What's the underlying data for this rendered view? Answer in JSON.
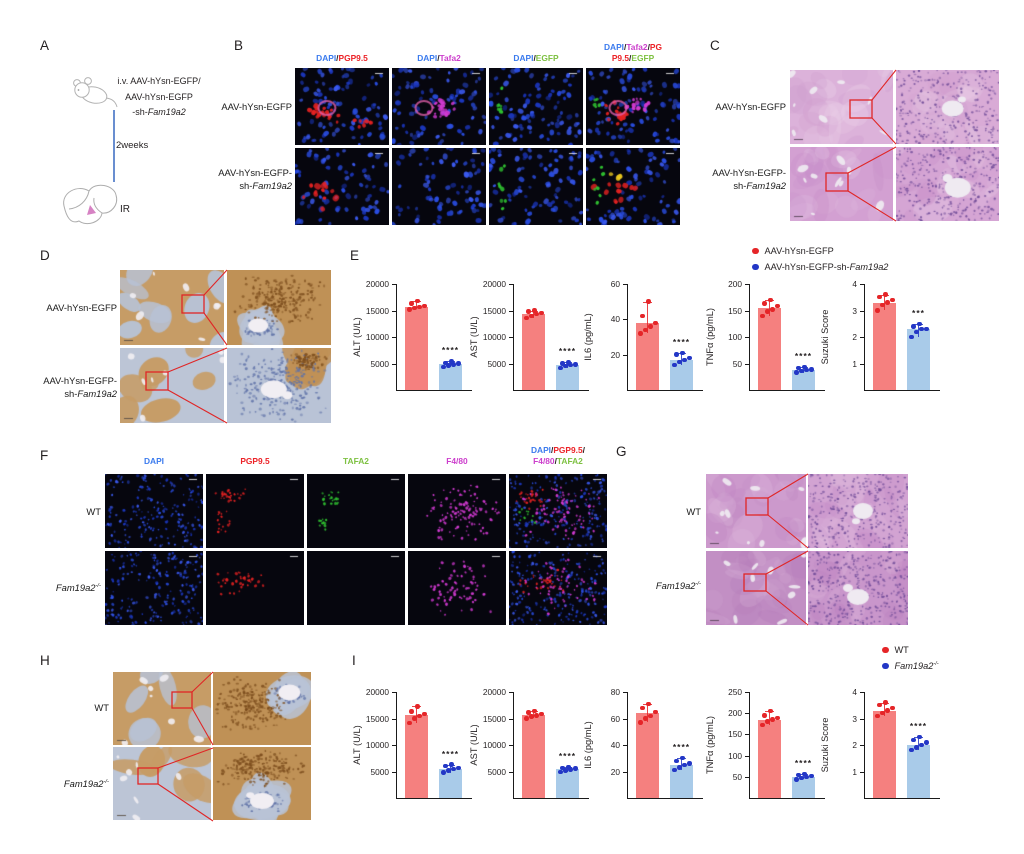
{
  "colors": {
    "text": "#231f20",
    "dapi_blue": "#3b7bee",
    "marker_red": "#ec2227",
    "marker_magenta": "#cc3ecc",
    "marker_green": "#7ec142",
    "bar_red": "#f5807f",
    "bar_blue": "#a9cbe9",
    "dot_red": "#e52528",
    "dot_blue": "#2337c6",
    "annotation_red": "#e02626",
    "timeline_blue": "#4472c4"
  },
  "panel_a": {
    "label": "A",
    "treatment": [
      [
        {
          "t": "i.v. AAV-hYsn-EGFP/"
        }
      ],
      [
        {
          "t": "AAV-hYsn-EGFP"
        }
      ],
      [
        {
          "t": "-sh-"
        },
        {
          "t": "Fam19a2",
          "i": true
        }
      ]
    ],
    "duration": "2weeks",
    "procedure": "IR"
  },
  "panel_b": {
    "label": "B",
    "col_headers": [
      [
        [
          {
            "t": "DAPI",
            "c": "dapi_blue"
          },
          {
            "t": "/"
          },
          {
            "t": "PGP9.5",
            "c": "marker_red"
          }
        ]
      ],
      [
        [
          {
            "t": "DAPI",
            "c": "dapi_blue"
          },
          {
            "t": "/"
          },
          {
            "t": "Tafa2",
            "c": "marker_magenta"
          }
        ]
      ],
      [
        [
          {
            "t": "DAPI",
            "c": "dapi_blue"
          },
          {
            "t": "/"
          },
          {
            "t": "EGFP",
            "c": "marker_green"
          }
        ]
      ],
      [
        [
          {
            "t": "DAPI",
            "c": "dapi_blue"
          },
          {
            "t": "/"
          },
          {
            "t": "Tafa2",
            "c": "marker_magenta"
          },
          {
            "t": "/"
          },
          {
            "t": "PG",
            "c": "marker_red"
          }
        ],
        [
          {
            "t": "P9.5",
            "c": "marker_red"
          },
          {
            "t": "/"
          },
          {
            "t": "EGFP",
            "c": "marker_green"
          }
        ]
      ]
    ],
    "row_labels": [
      [
        [
          {
            "t": "AAV-hYsn-EGFP"
          }
        ]
      ],
      [
        [
          {
            "t": "AAV-hYsn-EGFP-"
          }
        ],
        [
          {
            "t": "sh-"
          },
          {
            "t": "Fam19a2",
            "i": true
          }
        ]
      ]
    ]
  },
  "panel_c": {
    "label": "C",
    "row_labels": [
      [
        [
          {
            "t": "AAV-hYsn-EGFP"
          }
        ]
      ],
      [
        [
          {
            "t": "AAV-hYsn-EGFP-"
          }
        ],
        [
          {
            "t": "sh-"
          },
          {
            "t": "Fam19a2",
            "i": true
          }
        ]
      ]
    ]
  },
  "panel_d": {
    "label": "D",
    "row_labels": [
      [
        [
          {
            "t": "AAV-hYsn-EGFP"
          }
        ]
      ],
      [
        [
          {
            "t": "AAV-hYsn-EGFP-"
          }
        ],
        [
          {
            "t": "sh-"
          },
          {
            "t": "Fam19a2",
            "i": true
          }
        ]
      ]
    ]
  },
  "panel_e": {
    "label": "E",
    "legend": [
      {
        "c": "dot_red",
        "segs": [
          {
            "t": "AAV-hYsn-EGFP"
          }
        ]
      },
      {
        "c": "dot_blue",
        "segs": [
          {
            "t": "AAV-hYsn-EGFP-sh-"
          },
          {
            "t": "Fam19a2",
            "i": true
          }
        ]
      }
    ]
  },
  "panel_f": {
    "label": "F",
    "col_headers": [
      [
        [
          {
            "t": "DAPI",
            "c": "dapi_blue"
          }
        ]
      ],
      [
        [
          {
            "t": "PGP9.5",
            "c": "marker_red"
          }
        ]
      ],
      [
        [
          {
            "t": "TAFA2",
            "c": "marker_green"
          }
        ]
      ],
      [
        [
          {
            "t": "F4/80",
            "c": "marker_magenta"
          }
        ]
      ],
      [
        [
          {
            "t": "DAPI",
            "c": "dapi_blue"
          },
          {
            "t": "/"
          },
          {
            "t": "PGP9.5",
            "c": "marker_red"
          },
          {
            "t": "/"
          }
        ],
        [
          {
            "t": "F4/80",
            "c": "marker_magenta"
          },
          {
            "t": "/"
          },
          {
            "t": "TAFA2",
            "c": "marker_green"
          }
        ]
      ]
    ],
    "row_labels": [
      [
        [
          {
            "t": "WT"
          }
        ]
      ],
      [
        [
          {
            "t": "Fam19a2",
            "i": true
          },
          {
            "t": "-/-",
            "i": true,
            "sup": true
          }
        ]
      ]
    ]
  },
  "panel_g": {
    "label": "G",
    "row_labels": [
      [
        [
          {
            "t": "WT"
          }
        ]
      ],
      [
        [
          {
            "t": "Fam19a2",
            "i": true
          },
          {
            "t": "-/-",
            "i": true,
            "sup": true
          }
        ]
      ]
    ]
  },
  "panel_h": {
    "label": "H",
    "row_labels": [
      [
        [
          {
            "t": "WT"
          }
        ]
      ],
      [
        [
          {
            "t": "Fam19a2",
            "i": true
          },
          {
            "t": "-/-",
            "i": true,
            "sup": true
          }
        ]
      ]
    ]
  },
  "panel_i": {
    "label": "I",
    "legend": [
      {
        "c": "dot_red",
        "segs": [
          {
            "t": "WT"
          }
        ]
      },
      {
        "c": "dot_blue",
        "segs": [
          {
            "t": "Fam19a2",
            "i": true
          },
          {
            "t": "-/-",
            "i": true,
            "sup": true
          }
        ]
      }
    ]
  },
  "chart_data": [
    {
      "panel": "E",
      "type": "bar",
      "ylabel": "ALT (U/L)",
      "ylim": [
        0,
        20000
      ],
      "yticks": [
        5000,
        10000,
        15000,
        20000
      ],
      "groups": [
        {
          "name": "AAV-hYsn-EGFP",
          "mean": 15700,
          "points": [
            15200,
            15500,
            15700,
            15900,
            16300,
            16800
          ]
        },
        {
          "name": "AAV-hYsn-EGFP-sh-Fam19a2",
          "mean": 4900,
          "points": [
            4300,
            4600,
            4800,
            5000,
            5100,
            5400
          ]
        }
      ],
      "significance": "****"
    },
    {
      "panel": "E",
      "type": "bar",
      "ylabel": "AST (U/L)",
      "ylim": [
        0,
        20000
      ],
      "yticks": [
        5000,
        10000,
        15000,
        20000
      ],
      "groups": [
        {
          "name": "AAV-hYsn-EGFP",
          "mean": 14300,
          "points": [
            13600,
            14000,
            14300,
            14500,
            14800,
            15000
          ]
        },
        {
          "name": "AAV-hYsn-EGFP-sh-Fam19a2",
          "mean": 4700,
          "points": [
            4200,
            4500,
            4700,
            4800,
            5000,
            5200
          ]
        }
      ],
      "significance": "****"
    },
    {
      "panel": "E",
      "type": "bar",
      "ylabel": "IL6 (pg/mL)",
      "ylim": [
        0,
        60
      ],
      "yticks": [
        20,
        40,
        60
      ],
      "groups": [
        {
          "name": "AAV-hYsn-EGFP",
          "mean": 38,
          "points": [
            32,
            34,
            36,
            38,
            42,
            50
          ]
        },
        {
          "name": "AAV-hYsn-EGFP-sh-Fam19a2",
          "mean": 17,
          "points": [
            14,
            16,
            17,
            18,
            20,
            21
          ]
        }
      ],
      "significance": "****"
    },
    {
      "panel": "E",
      "type": "bar",
      "ylabel": "TNFα (pg/mL)",
      "ylim": [
        0,
        200
      ],
      "yticks": [
        50,
        100,
        150,
        200
      ],
      "groups": [
        {
          "name": "AAV-hYsn-EGFP",
          "mean": 155,
          "points": [
            140,
            148,
            152,
            158,
            163,
            170
          ]
        },
        {
          "name": "AAV-hYsn-EGFP-sh-Fam19a2",
          "mean": 38,
          "points": [
            33,
            36,
            38,
            39,
            41,
            43
          ]
        }
      ],
      "significance": "****"
    },
    {
      "panel": "E",
      "type": "bar",
      "ylabel": "Suzuki Score",
      "ylim": [
        0,
        4
      ],
      "yticks": [
        1,
        2,
        3,
        4
      ],
      "groups": [
        {
          "name": "AAV-hYsn-EGFP",
          "mean": 3.3,
          "points": [
            3.0,
            3.2,
            3.3,
            3.4,
            3.5,
            3.6
          ]
        },
        {
          "name": "AAV-hYsn-EGFP-sh-Fam19a2",
          "mean": 2.3,
          "points": [
            2.0,
            2.2,
            2.3,
            2.3,
            2.4,
            2.5
          ]
        }
      ],
      "significance": "***"
    },
    {
      "panel": "I",
      "type": "bar",
      "ylabel": "ALT (U/L)",
      "ylim": [
        0,
        20000
      ],
      "yticks": [
        5000,
        10000,
        15000,
        20000
      ],
      "groups": [
        {
          "name": "WT",
          "mean": 15700,
          "points": [
            14200,
            15000,
            15500,
            15800,
            16300,
            17300
          ]
        },
        {
          "name": "Fam19a2-/-",
          "mean": 5500,
          "points": [
            4800,
            5200,
            5500,
            5700,
            6000,
            6300
          ]
        }
      ],
      "significance": "****"
    },
    {
      "panel": "I",
      "type": "bar",
      "ylabel": "AST (U/L)",
      "ylim": [
        0,
        20000
      ],
      "yticks": [
        5000,
        10000,
        15000,
        20000
      ],
      "groups": [
        {
          "name": "WT",
          "mean": 15700,
          "points": [
            15000,
            15400,
            15600,
            15800,
            16100,
            16400
          ]
        },
        {
          "name": "Fam19a2-/-",
          "mean": 5500,
          "points": [
            4900,
            5200,
            5400,
            5600,
            5700,
            5900
          ]
        }
      ],
      "significance": "****"
    },
    {
      "panel": "I",
      "type": "bar",
      "ylabel": "IL6 (pg/mL)",
      "ylim": [
        0,
        80
      ],
      "yticks": [
        20,
        40,
        60,
        80
      ],
      "groups": [
        {
          "name": "WT",
          "mean": 64,
          "points": [
            57,
            60,
            62,
            65,
            68,
            71
          ]
        },
        {
          "name": "Fam19a2-/-",
          "mean": 25,
          "points": [
            21,
            23,
            25,
            26,
            28,
            30
          ]
        }
      ],
      "significance": "****"
    },
    {
      "panel": "I",
      "type": "bar",
      "ylabel": "TNFα (pg/mL)",
      "ylim": [
        0,
        250
      ],
      "yticks": [
        50,
        100,
        150,
        200,
        250
      ],
      "groups": [
        {
          "name": "WT",
          "mean": 185,
          "points": [
            172,
            180,
            185,
            188,
            195,
            205
          ]
        },
        {
          "name": "Fam19a2-/-",
          "mean": 50,
          "points": [
            44,
            47,
            50,
            52,
            54,
            56
          ]
        }
      ],
      "significance": "****"
    },
    {
      "panel": "I",
      "type": "bar",
      "ylabel": "Suzuki Score",
      "ylim": [
        0,
        4
      ],
      "yticks": [
        1,
        2,
        3,
        4
      ],
      "groups": [
        {
          "name": "WT",
          "mean": 3.3,
          "points": [
            3.1,
            3.2,
            3.3,
            3.4,
            3.5,
            3.6
          ]
        },
        {
          "name": "Fam19a2-/-",
          "mean": 2.0,
          "points": [
            1.8,
            1.9,
            2.0,
            2.1,
            2.2,
            2.3
          ]
        }
      ],
      "significance": "****"
    }
  ]
}
